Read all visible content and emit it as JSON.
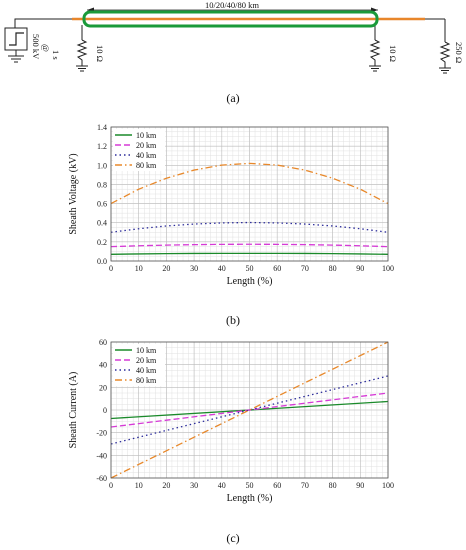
{
  "circuit": {
    "line_length_label": "10/20/40/80 km",
    "source_label": "500 kV",
    "source_time_at": "@",
    "source_time": "1 s",
    "r_left": "10 Ω",
    "r_right": "10 Ω",
    "r_load": "250 Ω",
    "panel_label": "(a)",
    "colors": {
      "core": "#e8862a",
      "sheath": "#1a9a3a",
      "wire": "#222222"
    }
  },
  "chart_data": [
    {
      "type": "line",
      "panel_label": "(b)",
      "xlabel": "Length (%)",
      "ylabel": "Sheath Voltage (kV)",
      "xlim": [
        0,
        100
      ],
      "ylim": [
        0,
        1.4
      ],
      "xticks": [
        0,
        10,
        20,
        30,
        40,
        50,
        60,
        70,
        80,
        90,
        100
      ],
      "yticks": [
        0.0,
        0.2,
        0.4,
        0.6,
        0.8,
        1.0,
        1.2,
        1.4
      ],
      "ytick_labels": [
        "0.0",
        "0.2",
        "0.4",
        "0.6",
        "0.8",
        "1.0",
        "1.2",
        "1.4"
      ],
      "grid": true,
      "legend": "top-left",
      "x": [
        0,
        10,
        20,
        30,
        40,
        50,
        60,
        70,
        80,
        90,
        100
      ],
      "series": [
        {
          "name": "10 km",
          "color": "#1a8a2a",
          "dash": "solid",
          "values": [
            0.07,
            0.074,
            0.077,
            0.079,
            0.08,
            0.08,
            0.08,
            0.079,
            0.077,
            0.074,
            0.07
          ]
        },
        {
          "name": "20 km",
          "color": "#d63ad6",
          "dash": "dash",
          "values": [
            0.15,
            0.159,
            0.166,
            0.171,
            0.174,
            0.175,
            0.174,
            0.171,
            0.166,
            0.159,
            0.15
          ]
        },
        {
          "name": "40 km",
          "color": "#2b2b9a",
          "dash": "dot",
          "values": [
            0.3,
            0.337,
            0.366,
            0.386,
            0.398,
            0.402,
            0.398,
            0.386,
            0.366,
            0.337,
            0.3
          ]
        },
        {
          "name": "80 km",
          "color": "#e8882a",
          "dash": "dashdot",
          "values": [
            0.6,
            0.75,
            0.865,
            0.95,
            1.002,
            1.02,
            1.002,
            0.95,
            0.865,
            0.75,
            0.6
          ]
        }
      ]
    },
    {
      "type": "line",
      "panel_label": "(c)",
      "xlabel": "Length (%)",
      "ylabel": "Sheath Current (A)",
      "xlim": [
        0,
        100
      ],
      "ylim": [
        -60,
        60
      ],
      "xticks": [
        0,
        10,
        20,
        30,
        40,
        50,
        60,
        70,
        80,
        90,
        100
      ],
      "yticks": [
        -60,
        -40,
        -20,
        0,
        20,
        40,
        60
      ],
      "ytick_labels": [
        "-60",
        "-40",
        "-20",
        "0",
        "20",
        "40",
        "60"
      ],
      "grid": true,
      "legend": "top-left",
      "x": [
        0,
        100
      ],
      "series": [
        {
          "name": "10 km",
          "color": "#1a8a2a",
          "dash": "solid",
          "values": [
            -7.5,
            7.5
          ]
        },
        {
          "name": "20 km",
          "color": "#d63ad6",
          "dash": "dash",
          "values": [
            -15,
            15
          ]
        },
        {
          "name": "40 km",
          "color": "#2b2b9a",
          "dash": "dot",
          "values": [
            -30,
            30
          ]
        },
        {
          "name": "80 km",
          "color": "#e8882a",
          "dash": "dashdot",
          "values": [
            -60,
            60
          ]
        }
      ]
    }
  ]
}
